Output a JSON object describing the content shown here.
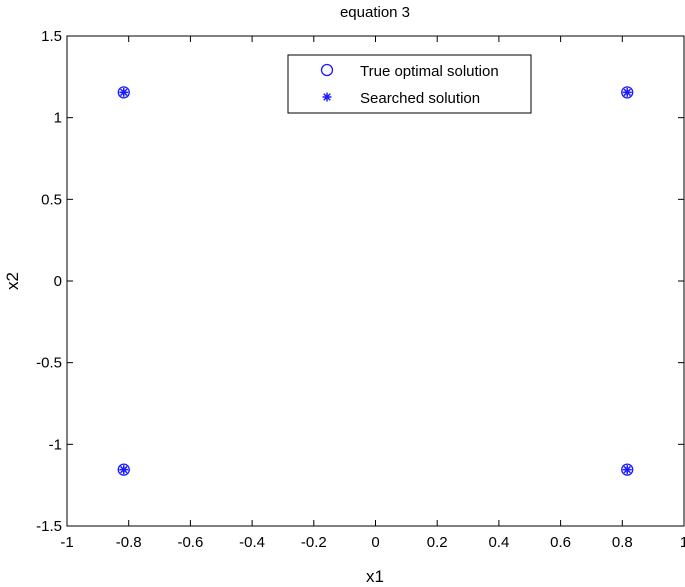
{
  "chart_data": {
    "type": "scatter",
    "title": "equation 3",
    "xlabel": "x1",
    "ylabel": "x2",
    "xlim": [
      -1,
      1
    ],
    "ylim": [
      -1.5,
      1.5
    ],
    "xticks": [
      -1,
      -0.8,
      -0.6,
      -0.4,
      -0.2,
      0,
      0.2,
      0.4,
      0.6,
      0.8,
      1
    ],
    "yticks": [
      -1.5,
      -1,
      -0.5,
      0,
      0.5,
      1,
      1.5
    ],
    "xtick_labels": [
      "-1",
      "-0.8",
      "-0.6",
      "-0.4",
      "-0.2",
      "0",
      "0.2",
      "0.4",
      "0.6",
      "0.8",
      "1"
    ],
    "ytick_labels": [
      "-1.5",
      "-1",
      "-0.5",
      "0",
      "0.5",
      "1",
      "1.5"
    ],
    "grid": false,
    "legend_position": "top-right",
    "marker_color": "#1a1aff",
    "series": [
      {
        "name": "True optimal solution",
        "marker": "circle",
        "x": [
          -0.816,
          0.816,
          -0.816,
          0.816
        ],
        "y": [
          1.155,
          1.155,
          -1.155,
          -1.155
        ]
      },
      {
        "name": "Searched solution",
        "marker": "star",
        "x": [
          -0.816,
          0.816,
          -0.816,
          0.816
        ],
        "y": [
          1.155,
          1.155,
          -1.155,
          -1.155
        ]
      }
    ]
  }
}
